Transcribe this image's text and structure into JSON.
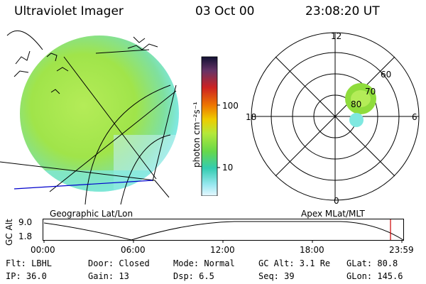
{
  "header": {
    "instrument": "Ultraviolet Imager",
    "date": "03 Oct 00",
    "time": "23:08:20 UT"
  },
  "colorbar": {
    "unit_label": "photon cm⁻²s⁻¹",
    "ticks": [
      "100",
      "10"
    ]
  },
  "polar_plot": {
    "mlt_labels": [
      "12",
      "18",
      "6",
      "0"
    ],
    "lat_labels": [
      "60",
      "70",
      "80"
    ]
  },
  "projection_labels": {
    "left": "Geographic Lat/Lon",
    "right": "Apex MLat/MLT"
  },
  "altitude_strip": {
    "axis_label": "GC Alt",
    "y_ticks": [
      "9.0",
      "1.8"
    ],
    "x_ticks": [
      "00:00",
      "06:00",
      "12:00",
      "18:00",
      "23:59"
    ]
  },
  "status": {
    "filter": "Flt: LBHL",
    "ip": "IP: 36.0",
    "door": "Door: Closed",
    "gain": "Gain: 13",
    "mode": "Mode: Normal",
    "dsp": "Dsp:     6.5",
    "gc_alt": "GC Alt: 3.1 Re",
    "seq": "Seq: 39",
    "glat": "GLat:   80.8",
    "glon": "GLon: 145.6"
  },
  "colors": {
    "image_fill": "#8fdc3c",
    "image_fill_light": "#b4ec58",
    "image_fill_cyan": "#7fe8e0",
    "track_line": "#0000cc",
    "marker_red": "#cc0000"
  }
}
